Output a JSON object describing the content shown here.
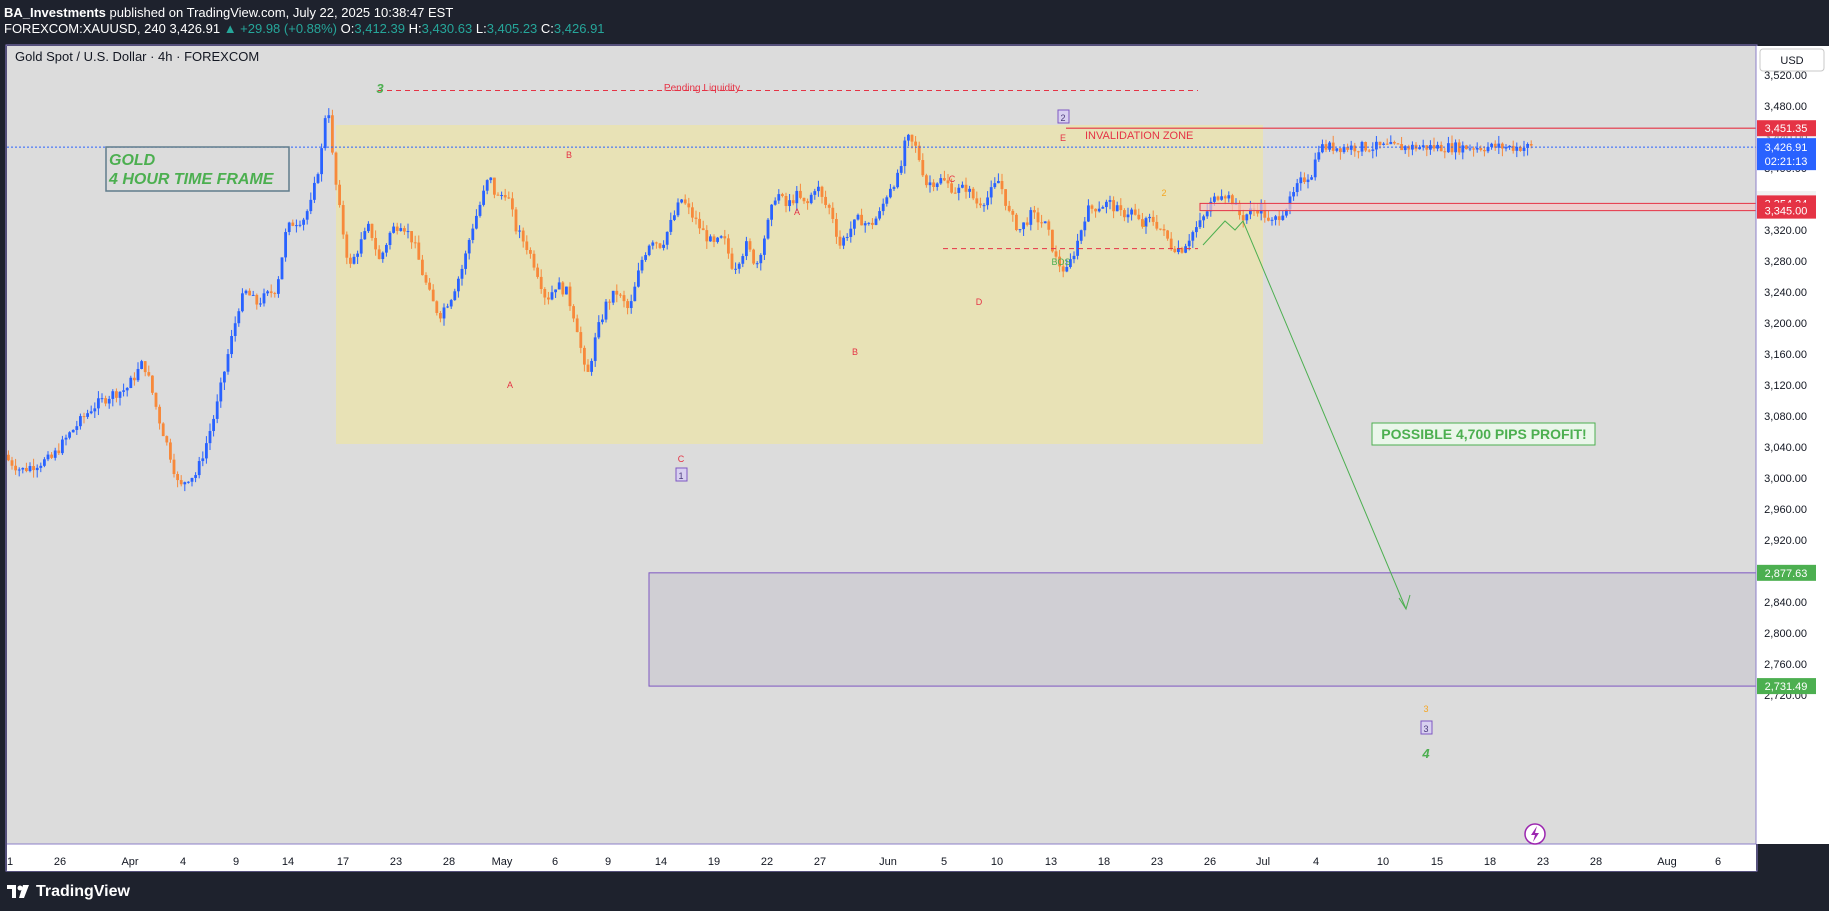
{
  "header": {
    "publisher": "BA_Investments",
    "published_text": "published on TradingView.com, July 22, 2025 10:38:47 EST",
    "symbol_line": "FOREXCOM:XAUUSD, 240",
    "last_price": "3,426.91",
    "change": "▲ +29.98 (+0.88%)",
    "open_label": "O:",
    "open": "3,412.39",
    "high_label": "H:",
    "high": "3,430.63",
    "low_label": "L:",
    "low": "3,405.23",
    "close_label": "C:",
    "close": "3,426.91"
  },
  "chart_title": "Gold Spot / U.S. Dollar · 4h · FOREXCOM",
  "currency_button": "USD",
  "footer": {
    "logo_text": "TradingView"
  },
  "colors": {
    "up": "#2962ff",
    "down": "#f7893b",
    "bg": "#dcdcdc",
    "axis_bg": "#ffffff",
    "zone": "#e9e2b1",
    "red": "#e53345",
    "green": "#4caf50",
    "purple": "#7e57c2"
  },
  "chart_data": {
    "type": "candlestick",
    "title": "Gold Spot / U.S. Dollar · 4h · FOREXCOM",
    "ylim": [
      2690,
      3552
    ],
    "y_ticks": [
      "3,520.00",
      "3,480.00",
      "3,440.00",
      "3,400.00",
      "3,360.00",
      "3,320.00",
      "3,280.00",
      "3,240.00",
      "3,200.00",
      "3,160.00",
      "3,120.00",
      "3,080.00",
      "3,040.00",
      "3,000.00",
      "2,960.00",
      "2,920.00",
      "2,880.00",
      "2,840.00",
      "2,800.00",
      "2,760.00",
      "2,720.00"
    ],
    "y_tick_values": [
      3520,
      3480,
      3440,
      3400,
      3360,
      3320,
      3280,
      3240,
      3200,
      3160,
      3120,
      3080,
      3040,
      3000,
      2960,
      2920,
      2880,
      2840,
      2800,
      2760,
      2720
    ],
    "x_ticks": [
      "1",
      "26",
      "Apr",
      "4",
      "9",
      "14",
      "17",
      "23",
      "28",
      "May",
      "6",
      "9",
      "14",
      "19",
      "22",
      "27",
      "Jun",
      "5",
      "10",
      "13",
      "18",
      "23",
      "26",
      "Jul",
      "4",
      "10",
      "15",
      "18",
      "23",
      "28",
      "Aug",
      "6"
    ],
    "price_path": [
      [
        0,
        3030
      ],
      [
        20,
        3010
      ],
      [
        35,
        3018
      ],
      [
        50,
        3025
      ],
      [
        70,
        3060
      ],
      [
        90,
        3090
      ],
      [
        110,
        3108
      ],
      [
        125,
        3115
      ],
      [
        135,
        3135
      ],
      [
        142,
        3150
      ],
      [
        148,
        3125
      ],
      [
        158,
        3075
      ],
      [
        170,
        3025
      ],
      [
        178,
        2985
      ],
      [
        185,
        3000
      ],
      [
        195,
        3005
      ],
      [
        205,
        3045
      ],
      [
        215,
        3090
      ],
      [
        225,
        3150
      ],
      [
        232,
        3190
      ],
      [
        238,
        3225
      ],
      [
        245,
        3240
      ],
      [
        255,
        3225
      ],
      [
        265,
        3235
      ],
      [
        275,
        3245
      ],
      [
        285,
        3320
      ],
      [
        292,
        3330
      ],
      [
        302,
        3335
      ],
      [
        310,
        3355
      ],
      [
        320,
        3420
      ],
      [
        326,
        3495
      ],
      [
        332,
        3400
      ],
      [
        340,
        3330
      ],
      [
        348,
        3270
      ],
      [
        358,
        3300
      ],
      [
        368,
        3325
      ],
      [
        378,
        3280
      ],
      [
        390,
        3320
      ],
      [
        400,
        3330
      ],
      [
        412,
        3305
      ],
      [
        422,
        3260
      ],
      [
        430,
        3230
      ],
      [
        438,
        3210
      ],
      [
        450,
        3235
      ],
      [
        462,
        3275
      ],
      [
        470,
        3320
      ],
      [
        478,
        3350
      ],
      [
        488,
        3390
      ],
      [
        495,
        3360
      ],
      [
        505,
        3370
      ],
      [
        515,
        3320
      ],
      [
        525,
        3300
      ],
      [
        535,
        3270
      ],
      [
        545,
        3230
      ],
      [
        555,
        3250
      ],
      [
        565,
        3240
      ],
      [
        575,
        3200
      ],
      [
        585,
        3125
      ],
      [
        595,
        3185
      ],
      [
        605,
        3225
      ],
      [
        615,
        3240
      ],
      [
        628,
        3215
      ],
      [
        640,
        3280
      ],
      [
        650,
        3310
      ],
      [
        660,
        3300
      ],
      [
        670,
        3330
      ],
      [
        680,
        3360
      ],
      [
        690,
        3340
      ],
      [
        700,
        3320
      ],
      [
        712,
        3300
      ],
      [
        722,
        3310
      ],
      [
        732,
        3270
      ],
      [
        745,
        3300
      ],
      [
        755,
        3275
      ],
      [
        765,
        3320
      ],
      [
        775,
        3370
      ],
      [
        785,
        3350
      ],
      [
        795,
        3365
      ],
      [
        805,
        3350
      ],
      [
        815,
        3380
      ],
      [
        822,
        3355
      ],
      [
        830,
        3345
      ],
      [
        838,
        3300
      ],
      [
        848,
        3320
      ],
      [
        858,
        3335
      ],
      [
        868,
        3325
      ],
      [
        878,
        3340
      ],
      [
        888,
        3375
      ],
      [
        898,
        3390
      ],
      [
        905,
        3440
      ],
      [
        915,
        3425
      ],
      [
        925,
        3380
      ],
      [
        940,
        3385
      ],
      [
        955,
        3370
      ],
      [
        965,
        3375
      ],
      [
        975,
        3355
      ],
      [
        985,
        3360
      ],
      [
        998,
        3385
      ],
      [
        1008,
        3340
      ],
      [
        1018,
        3320
      ],
      [
        1030,
        3340
      ],
      [
        1045,
        3325
      ],
      [
        1055,
        3280
      ],
      [
        1065,
        3265
      ],
      [
        1075,
        3300
      ],
      [
        1085,
        3345
      ],
      [
        1095,
        3350
      ],
      [
        1108,
        3355
      ],
      [
        1120,
        3340
      ],
      [
        1130,
        3345
      ],
      [
        1140,
        3325
      ],
      [
        1150,
        3335
      ],
      [
        1160,
        3320
      ],
      [
        1170,
        3300
      ],
      [
        1180,
        3295
      ],
      [
        1190,
        3315
      ],
      [
        1200,
        3330
      ],
      [
        1210,
        3355
      ],
      [
        1220,
        3370
      ],
      [
        1230,
        3360
      ],
      [
        1240,
        3335
      ],
      [
        1250,
        3345
      ],
      [
        1260,
        3350
      ],
      [
        1268,
        3325
      ],
      [
        1278,
        3340
      ],
      [
        1288,
        3355
      ],
      [
        1298,
        3380
      ],
      [
        1306,
        3390
      ],
      [
        1312,
        3395
      ],
      [
        1316,
        3427
      ]
    ],
    "annotations": {
      "left_label_line1": "GOLD",
      "left_label_line2": "4 HOUR TIME FRAME",
      "pending_liquidity": "Pending Liquidity",
      "invalidation_zone": "INVALIDATION ZONE",
      "bos": "BOS",
      "profit_label": "POSSIBLE 4,700 PIPS PROFIT!",
      "wave_top": "3",
      "wave_A1": "A",
      "wave_B1": "B",
      "wave_C1": "C",
      "wave_box1": "1",
      "wave_A2": "A",
      "wave_B2": "B",
      "wave_C2": "C",
      "wave_D2": "D",
      "wave_E2": "E",
      "wave_box2": "2",
      "minor_1": "1",
      "minor_2": "2",
      "target_orange_3": "3",
      "target_box_3": "3",
      "target_green_4": "4"
    },
    "levels": {
      "invalidation": 3451.35,
      "resistance_high": 3354.34,
      "resistance_low": 3345.0,
      "target_top": 2877.63,
      "target_bottom": 2731.49,
      "current": 3426.91,
      "pending_liquidity": 3500
    },
    "price_labels": {
      "invalidation": "3,451.35",
      "hidden_440": "3,440.00",
      "current": "3,426.91",
      "countdown": "02:21:13",
      "hidden_360": "3,360.00",
      "resistance_high": "3,354.34",
      "resistance_low": "3,345.00",
      "target_top": "2,877.63",
      "target_bottom": "2,731.49"
    }
  }
}
